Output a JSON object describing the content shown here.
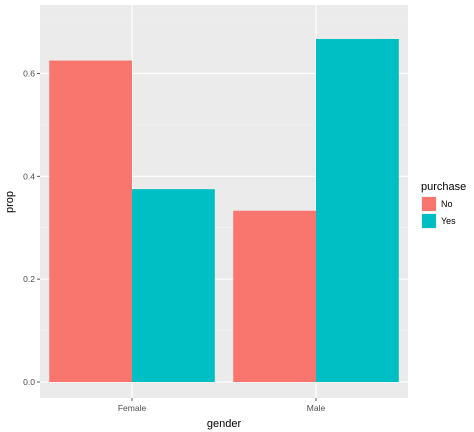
{
  "chart_data": {
    "type": "bar",
    "categories": [
      "Female",
      "Male"
    ],
    "series": [
      {
        "name": "No",
        "values": [
          0.625,
          0.333
        ]
      },
      {
        "name": "Yes",
        "values": [
          0.375,
          0.667
        ]
      }
    ],
    "xlabel": "gender",
    "ylabel": "prop",
    "ylim": [
      0,
      0.7
    ],
    "yticks": [
      0.0,
      0.2,
      0.4,
      0.6
    ],
    "ytick_labels": [
      "0.0",
      "0.2",
      "0.4",
      "0.6"
    ],
    "legend_title": "purchase",
    "legend_position": "right",
    "grid": true,
    "colors": {
      "No": "#F8766D",
      "Yes": "#00BFC4",
      "panel": "#EBEBEB",
      "grid_major": "#FFFFFF",
      "grid_minor": "#F2F2F2"
    }
  }
}
